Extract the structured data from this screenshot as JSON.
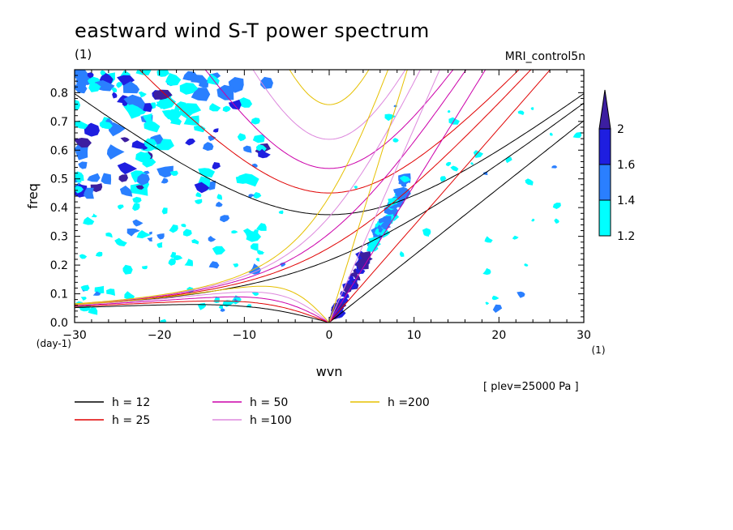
{
  "chart_data": {
    "type": "heatmap",
    "title": "eastward wind S-T power spectrum",
    "subtitle_left": "(1)",
    "subtitle_right": "MRI_control5n",
    "xlabel": "wvn",
    "ylabel": "freq",
    "x_unit": "(1)",
    "y_unit": "(day-1)",
    "xlim": [
      -30,
      30
    ],
    "ylim": [
      0,
      0.88
    ],
    "x_ticks": [
      -30,
      -20,
      -10,
      0,
      10,
      20,
      30
    ],
    "y_ticks": [
      0.0,
      0.1,
      0.2,
      0.3,
      0.4,
      0.5,
      0.6,
      0.7,
      0.8
    ],
    "note": "[ plev=25000 Pa ]",
    "colorbar": {
      "levels": [
        1.2,
        1.4,
        1.6,
        2
      ],
      "colors": [
        "#00ffff",
        "#2a7fff",
        "#1e1ee0",
        "#3c1ea0"
      ]
    },
    "dispersion_curves": [
      {
        "label": "h = 12",
        "h": 12,
        "color": "#000000"
      },
      {
        "label": "h = 25",
        "h": 25,
        "color": "#e00000"
      },
      {
        "label": "h = 50",
        "h": 50,
        "color": "#cc00aa"
      },
      {
        "label": "h =100",
        "h": 100,
        "color": "#dd88dd"
      },
      {
        "label": "h =200",
        "h": 200,
        "color": "#e6c000"
      }
    ]
  }
}
